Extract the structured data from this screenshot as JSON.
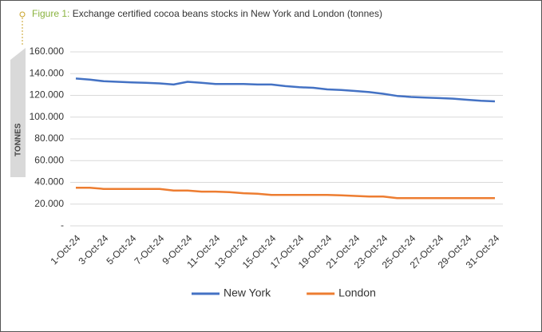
{
  "chart_data": {
    "type": "line",
    "figure_label": "Figure 1:",
    "title": "Exchange certified cocoa beans stocks in New York and London  (tonnes)",
    "ylabel": "TONNES",
    "categories": [
      "1-Oct-24",
      null,
      "3-Oct-24",
      null,
      "5-Oct-24",
      null,
      "7-Oct-24",
      null,
      "9-Oct-24",
      null,
      "11-Oct-24",
      null,
      "13-Oct-24",
      null,
      "15-Oct-24",
      null,
      "17-Oct-24",
      null,
      "19-Oct-24",
      null,
      "21-Oct-24",
      null,
      "23-Oct-24",
      null,
      "25-Oct-24",
      null,
      "27-Oct-24",
      null,
      "29-Oct-24",
      null,
      "31-Oct-24"
    ],
    "series": [
      {
        "name": "New York",
        "color": "#4472c4",
        "values": [
          135500,
          134500,
          133000,
          132500,
          132000,
          131500,
          131000,
          130000,
          132500,
          131500,
          130500,
          130500,
          130500,
          130000,
          130000,
          128500,
          127500,
          127000,
          125500,
          125000,
          124000,
          123000,
          121500,
          119500,
          118500,
          118000,
          117500,
          117000,
          116000,
          115000,
          114500
        ]
      },
      {
        "name": "London",
        "color": "#ed7d31",
        "values": [
          35000,
          35000,
          34000,
          34000,
          34000,
          34000,
          34000,
          32500,
          32500,
          31500,
          31500,
          31000,
          30000,
          29500,
          28500,
          28500,
          28500,
          28500,
          28500,
          28000,
          27500,
          27000,
          27000,
          25500,
          25500,
          25500,
          25500,
          25500,
          25500,
          25500,
          25500
        ]
      }
    ],
    "ylim": [
      0,
      160000
    ],
    "yticks": [
      {
        "value": 0,
        "label": "-"
      },
      {
        "value": 20000,
        "label": "20.000"
      },
      {
        "value": 40000,
        "label": "40.000"
      },
      {
        "value": 60000,
        "label": "60.000"
      },
      {
        "value": 80000,
        "label": "80.000"
      },
      {
        "value": 100000,
        "label": "100.000"
      },
      {
        "value": 120000,
        "label": "120.000"
      },
      {
        "value": 140000,
        "label": "140.000"
      },
      {
        "value": 160000,
        "label": "160.000"
      }
    ],
    "grid": true,
    "legend": "bottom"
  }
}
